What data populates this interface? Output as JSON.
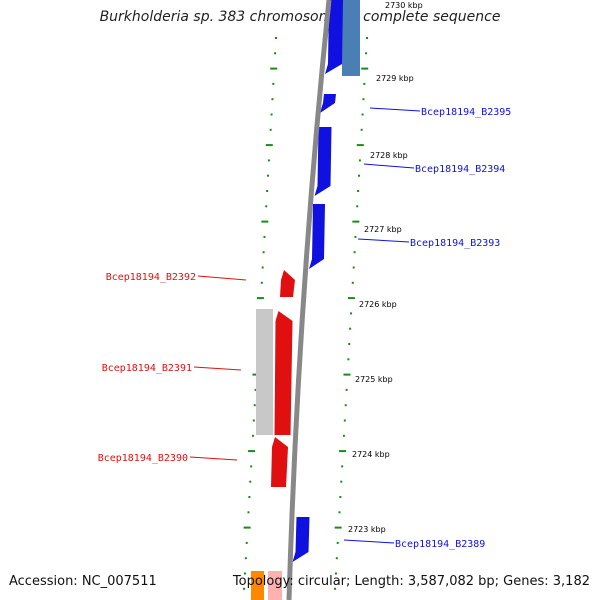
{
  "title": "Burkholderia sp. 383 chromosome 2, complete sequence",
  "footer": {
    "accession": "Accession: NC_007511",
    "topology": "Topology: circular; Length: 3,587,082 bp; Genes: 3,182"
  },
  "colors": {
    "plus_strand": "#1010e0",
    "minus_strand": "#e01010",
    "backbone": "#888888",
    "tick": "#1a8a1a",
    "other_gene": "#ff8800",
    "pseudo": "#c8c8c8",
    "hypothetical": "#4a7fb5"
  },
  "kbp_labels": [
    "2730 kbp",
    "2729 kbp",
    "2728 kbp",
    "2727 kbp",
    "2726 kbp",
    "2725 kbp",
    "2724 kbp",
    "2723 kbp"
  ],
  "genes_right": [
    {
      "label": "Bcep18194_B2395",
      "strand": "+"
    },
    {
      "label": "Bcep18194_B2394",
      "strand": "+"
    },
    {
      "label": "Bcep18194_B2393",
      "strand": "+"
    },
    {
      "label": "Bcep18194_B2389",
      "strand": "+"
    }
  ],
  "genes_left": [
    {
      "label": "Bcep18194_B2392",
      "strand": "-"
    },
    {
      "label": "Bcep18194_B2391",
      "strand": "-"
    },
    {
      "label": "Bcep18194_B2390",
      "strand": "-"
    }
  ]
}
